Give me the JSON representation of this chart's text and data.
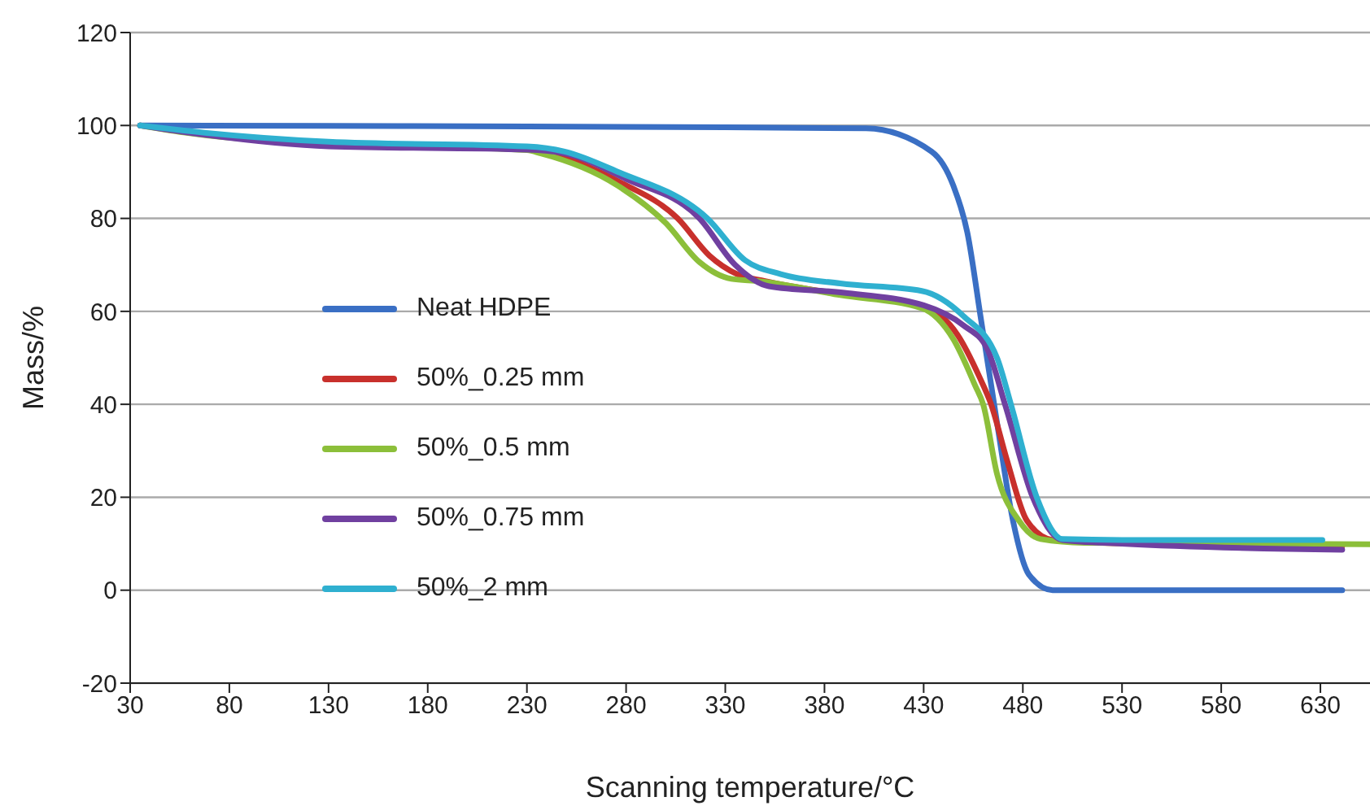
{
  "chart_data": {
    "type": "line",
    "xlabel": "Scanning temperature/°C",
    "ylabel": "Mass/%",
    "xlim": [
      30,
      655
    ],
    "xticks": [
      30,
      80,
      130,
      180,
      230,
      280,
      330,
      380,
      430,
      480,
      530,
      580,
      630
    ],
    "ylim": [
      -20,
      120
    ],
    "yticks": [
      -20,
      0,
      20,
      40,
      60,
      80,
      100,
      120
    ],
    "grid": "y",
    "legend": "left",
    "marker": "none",
    "line_style": "solid",
    "series": [
      {
        "name": "Neat HDPE",
        "color": "#3a6fc4",
        "x": [
          35,
          130,
          230,
          330,
          401,
          434,
          445,
          452,
          459,
          467,
          475,
          483,
          495,
          560,
          641
        ],
        "values": [
          100,
          99.9,
          99.8,
          99.6,
          99.4,
          94.4,
          87,
          77,
          58,
          36,
          15,
          3.4,
          0,
          0,
          0
        ]
      },
      {
        "name": "50%_0.25 mm",
        "color": "#c8302c",
        "x": [
          245,
          276,
          306,
          322,
          336,
          350,
          390,
          430,
          447,
          458,
          464,
          472,
          482,
          495,
          520,
          641
        ],
        "values": [
          94,
          88,
          80,
          72,
          68,
          66.5,
          63.6,
          61,
          55,
          46,
          40,
          28,
          15,
          10.8,
          10.2,
          9.5
        ]
      },
      {
        "name": "50%_0.5 mm",
        "color": "#8cbf3a",
        "x": [
          35,
          57,
          130,
          230,
          237,
          276,
          300,
          317,
          333,
          347,
          388,
          429,
          445,
          456,
          460,
          467,
          478,
          489,
          511,
          655
        ],
        "values": [
          100,
          98.5,
          96,
          94.7,
          94,
          87,
          79,
          70.6,
          67,
          66.5,
          63.5,
          60.7,
          54,
          44,
          40,
          25,
          15,
          11,
          10.2,
          9.9
        ]
      },
      {
        "name": "50%_0.75 mm",
        "color": "#7040a0",
        "x": [
          35,
          57,
          130,
          230,
          249,
          280,
          317,
          335,
          352,
          390,
          430,
          450,
          462,
          471,
          485,
          500,
          530,
          641
        ],
        "values": [
          100,
          98.6,
          95.5,
          94.8,
          94,
          88.5,
          80,
          70,
          65.4,
          64,
          61.3,
          57,
          52,
          40,
          20,
          10.8,
          10,
          8.7
        ]
      },
      {
        "name": "50%_2 mm",
        "color": "#2fb0d0",
        "x": [
          35,
          57,
          130,
          230,
          249,
          276,
          321,
          340,
          358,
          388,
          429,
          450,
          467,
          474,
          487,
          500,
          530,
          631
        ],
        "values": [
          100,
          98.9,
          96.5,
          95.5,
          94.4,
          90,
          80,
          71,
          68,
          66,
          64.4,
          59,
          50,
          40,
          20,
          11,
          10.8,
          10.8
        ]
      }
    ]
  }
}
